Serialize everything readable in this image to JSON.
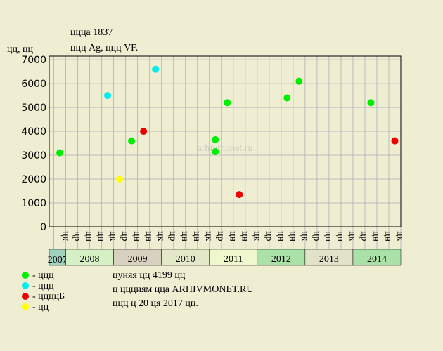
{
  "chart_data": {
    "type": "scatter",
    "title": "ццца 1837",
    "subtitle": "ццц Ag, ццц VF.",
    "y_label": "цц, цц",
    "watermark": "arhivmonet.ru",
    "categories": [
      "цк",
      "цр",
      "цн",
      "цн",
      "цк",
      "цр",
      "цн",
      "цн",
      "цк",
      "цр",
      "цн",
      "цн",
      "цк",
      "цр",
      "цн",
      "цн",
      "цк",
      "цр",
      "цн",
      "цн",
      "цк",
      "цр",
      "цн",
      "цн",
      "цк",
      "цр",
      "цн",
      "цн",
      "цк"
    ],
    "years": [
      {
        "label": "2007",
        "from": 0,
        "to": 0,
        "color": "#9fd3c0"
      },
      {
        "label": "2008",
        "from": 1,
        "to": 4,
        "color": "#d6f0c6"
      },
      {
        "label": "2009",
        "from": 5,
        "to": 8,
        "color": "#d9d1c0"
      },
      {
        "label": "2010",
        "from": 9,
        "to": 12,
        "color": "#e2e8c8"
      },
      {
        "label": "2011",
        "from": 13,
        "to": 16,
        "color": "#eef8cc"
      },
      {
        "label": "2012",
        "from": 17,
        "to": 20,
        "color": "#a9e1a6"
      },
      {
        "label": "2013",
        "from": 21,
        "to": 24,
        "color": "#e2e2c8"
      },
      {
        "label": "2014",
        "from": 25,
        "to": 28,
        "color": "#a9e1a6"
      }
    ],
    "series": [
      {
        "name": "- ццц",
        "color": "#00ee00",
        "category_index": [
          0,
          6,
          13,
          13,
          14,
          19,
          20,
          26
        ],
        "values": [
          3100,
          3600,
          3150,
          3650,
          5200,
          5400,
          6100,
          5200
        ]
      },
      {
        "name": "- ццц",
        "color": "#00eeee",
        "category_index": [
          4,
          8
        ],
        "values": [
          5500,
          6600
        ]
      },
      {
        "name": "- ццццБ",
        "color": "#ee0000",
        "category_index": [
          7,
          15,
          28
        ],
        "values": [
          4000,
          1350,
          3600
        ]
      },
      {
        "name": "- цц",
        "color": "#ffff00",
        "category_index": [
          5
        ],
        "values": [
          2000
        ]
      }
    ],
    "ylim": [
      0,
      7150
    ],
    "yticks": [
      0,
      1000,
      2000,
      3000,
      4000,
      5000,
      6000,
      7000
    ],
    "grid": true,
    "notes": [
      "цуняя цц 4199 цц",
      "ц ццциям цца ARHIVMONET.RU",
      "ццц ц 20 ця 2017 цц."
    ]
  }
}
